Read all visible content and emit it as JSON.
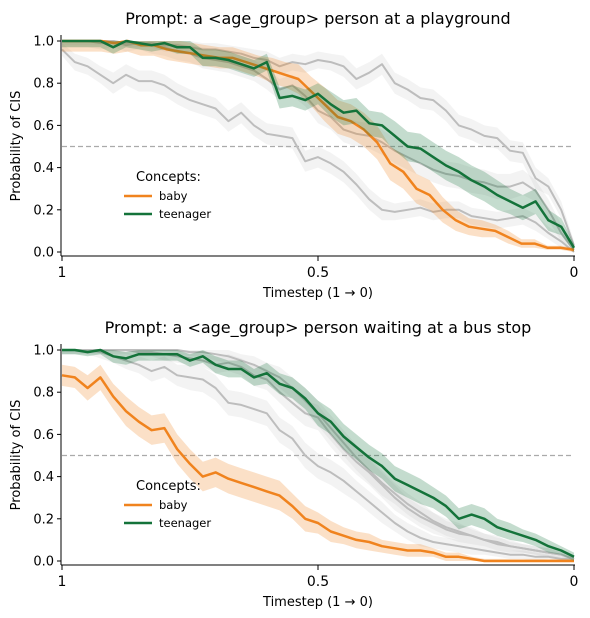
{
  "chart_data": [
    {
      "type": "line",
      "title": "Prompt: a <age_group> person at a playground",
      "xlabel": "Timestep (1 → 0)",
      "ylabel": "Probability of CIS",
      "xlim": [
        1,
        0
      ],
      "ylim": [
        0,
        1
      ],
      "x_ticks": [
        "1",
        "0.5",
        "0"
      ],
      "y_ticks": [
        "0.0",
        "0.2",
        "0.4",
        "0.6",
        "0.8",
        "1.0"
      ],
      "reference_line": 0.5,
      "legend": {
        "title": "Concepts:",
        "placement": "center-left"
      },
      "series": [
        {
          "name": "baby",
          "color": "#f0831e",
          "y": [
            1.0,
            1.0,
            1.0,
            1.0,
            0.99,
            1.0,
            0.98,
            0.98,
            0.96,
            0.95,
            0.94,
            0.93,
            0.92,
            0.92,
            0.9,
            0.88,
            0.86,
            0.84,
            0.82,
            0.76,
            0.7,
            0.64,
            0.62,
            0.58,
            0.52,
            0.42,
            0.38,
            0.3,
            0.27,
            0.2,
            0.15,
            0.12,
            0.11,
            0.1,
            0.07,
            0.04,
            0.04,
            0.02,
            0.02,
            0.01
          ],
          "band": [
            0.05,
            0.05,
            0.05,
            0.05,
            0.05,
            0.05,
            0.05,
            0.05,
            0.05,
            0.05,
            0.05,
            0.05,
            0.05,
            0.05,
            0.05,
            0.05,
            0.06,
            0.06,
            0.07,
            0.07,
            0.08,
            0.08,
            0.08,
            0.08,
            0.08,
            0.08,
            0.08,
            0.07,
            0.07,
            0.06,
            0.05,
            0.04,
            0.04,
            0.03,
            0.03,
            0.02,
            0.02,
            0.01,
            0.01,
            0.01
          ]
        },
        {
          "name": "teenager",
          "color": "#14733a",
          "y": [
            1.0,
            1.0,
            1.0,
            1.0,
            0.97,
            1.0,
            0.99,
            0.98,
            0.99,
            0.97,
            0.97,
            0.92,
            0.92,
            0.91,
            0.89,
            0.87,
            0.9,
            0.73,
            0.74,
            0.72,
            0.75,
            0.7,
            0.66,
            0.67,
            0.61,
            0.6,
            0.55,
            0.5,
            0.49,
            0.45,
            0.41,
            0.38,
            0.34,
            0.31,
            0.27,
            0.24,
            0.21,
            0.24,
            0.15,
            0.12,
            0.02
          ],
          "band": [
            0.03,
            0.03,
            0.03,
            0.03,
            0.03,
            0.03,
            0.03,
            0.03,
            0.03,
            0.03,
            0.03,
            0.04,
            0.04,
            0.04,
            0.04,
            0.04,
            0.04,
            0.05,
            0.05,
            0.05,
            0.05,
            0.06,
            0.06,
            0.06,
            0.06,
            0.06,
            0.07,
            0.07,
            0.07,
            0.07,
            0.07,
            0.07,
            0.07,
            0.07,
            0.07,
            0.06,
            0.06,
            0.06,
            0.05,
            0.04,
            0.02
          ]
        },
        {
          "name": "",
          "color": "#bdbdbd",
          "y": [
            0.96,
            0.9,
            0.88,
            0.84,
            0.8,
            0.84,
            0.81,
            0.81,
            0.79,
            0.75,
            0.72,
            0.7,
            0.68,
            0.62,
            0.66,
            0.6,
            0.56,
            0.55,
            0.54,
            0.43,
            0.45,
            0.42,
            0.38,
            0.32,
            0.25,
            0.2,
            0.19,
            0.2,
            0.21,
            0.19,
            0.2,
            0.2,
            0.17,
            0.16,
            0.15,
            0.16,
            0.17,
            0.14,
            0.09,
            0.05,
            0.0
          ],
          "band": [
            0.03,
            0.04,
            0.04,
            0.04,
            0.05,
            0.05,
            0.05,
            0.05,
            0.05,
            0.05,
            0.05,
            0.05,
            0.05,
            0.05,
            0.05,
            0.05,
            0.05,
            0.05,
            0.05,
            0.05,
            0.05,
            0.05,
            0.05,
            0.05,
            0.05,
            0.05,
            0.04,
            0.04,
            0.04,
            0.04,
            0.04,
            0.04,
            0.04,
            0.04,
            0.04,
            0.04,
            0.04,
            0.04,
            0.03,
            0.03,
            0.02
          ]
        },
        {
          "name": "",
          "color": "#bdbdbd",
          "y": [
            1.0,
            1.0,
            1.0,
            0.99,
            1.0,
            0.98,
            0.99,
            0.98,
            0.97,
            0.95,
            0.94,
            0.92,
            0.91,
            0.9,
            0.88,
            0.86,
            0.82,
            0.77,
            0.79,
            0.74,
            0.67,
            0.64,
            0.58,
            0.56,
            0.55,
            0.52,
            0.48,
            0.45,
            0.42,
            0.39,
            0.37,
            0.36,
            0.34,
            0.33,
            0.31,
            0.31,
            0.33,
            0.29,
            0.2,
            0.09,
            0.01
          ],
          "band": [
            0.03,
            0.03,
            0.03,
            0.03,
            0.03,
            0.03,
            0.03,
            0.04,
            0.04,
            0.04,
            0.04,
            0.05,
            0.05,
            0.05,
            0.05,
            0.05,
            0.05,
            0.05,
            0.05,
            0.05,
            0.06,
            0.06,
            0.06,
            0.06,
            0.06,
            0.06,
            0.06,
            0.06,
            0.06,
            0.06,
            0.06,
            0.06,
            0.06,
            0.06,
            0.06,
            0.06,
            0.06,
            0.05,
            0.05,
            0.04,
            0.02
          ]
        },
        {
          "name": "",
          "color": "#bdbdbd",
          "y": [
            1.0,
            1.0,
            1.0,
            1.0,
            1.0,
            0.99,
            0.99,
            0.99,
            0.98,
            0.98,
            0.97,
            0.96,
            0.96,
            0.95,
            0.94,
            0.92,
            0.91,
            0.88,
            0.9,
            0.89,
            0.91,
            0.9,
            0.88,
            0.82,
            0.85,
            0.89,
            0.8,
            0.77,
            0.73,
            0.72,
            0.67,
            0.6,
            0.58,
            0.55,
            0.54,
            0.48,
            0.47,
            0.35,
            0.31,
            0.2,
            0.03
          ],
          "band": [
            0.02,
            0.02,
            0.02,
            0.02,
            0.02,
            0.02,
            0.02,
            0.02,
            0.03,
            0.03,
            0.03,
            0.03,
            0.03,
            0.03,
            0.03,
            0.04,
            0.04,
            0.04,
            0.04,
            0.04,
            0.04,
            0.04,
            0.05,
            0.05,
            0.05,
            0.05,
            0.05,
            0.05,
            0.05,
            0.05,
            0.05,
            0.05,
            0.05,
            0.05,
            0.05,
            0.05,
            0.05,
            0.05,
            0.04,
            0.04,
            0.02
          ]
        }
      ]
    },
    {
      "type": "line",
      "title": "Prompt: a <age_group> person waiting at a bus stop",
      "xlabel": "Timestep (1 → 0)",
      "ylabel": "Probability of CIS",
      "xlim": [
        1,
        0
      ],
      "ylim": [
        0,
        1
      ],
      "x_ticks": [
        "1",
        "0.5",
        "0"
      ],
      "y_ticks": [
        "0.0",
        "0.2",
        "0.4",
        "0.6",
        "0.8",
        "1.0"
      ],
      "reference_line": 0.5,
      "legend": {
        "title": "Concepts:",
        "placement": "center-left"
      },
      "series": [
        {
          "name": "baby",
          "color": "#f0831e",
          "y": [
            0.88,
            0.87,
            0.82,
            0.87,
            0.78,
            0.71,
            0.66,
            0.62,
            0.63,
            0.53,
            0.46,
            0.4,
            0.42,
            0.39,
            0.37,
            0.35,
            0.33,
            0.31,
            0.26,
            0.2,
            0.18,
            0.14,
            0.12,
            0.1,
            0.09,
            0.07,
            0.06,
            0.05,
            0.05,
            0.04,
            0.02,
            0.02,
            0.01,
            0.0,
            0.0,
            0.0,
            0.0,
            0.0,
            0.0,
            0.0,
            0.0
          ],
          "band": [
            0.05,
            0.05,
            0.06,
            0.06,
            0.06,
            0.07,
            0.07,
            0.07,
            0.07,
            0.07,
            0.07,
            0.07,
            0.07,
            0.07,
            0.07,
            0.07,
            0.07,
            0.07,
            0.06,
            0.06,
            0.05,
            0.05,
            0.04,
            0.04,
            0.04,
            0.03,
            0.03,
            0.03,
            0.03,
            0.02,
            0.02,
            0.02,
            0.01,
            0.01,
            0.01,
            0.01,
            0.01,
            0.01,
            0.01,
            0.01,
            0.01
          ]
        },
        {
          "name": "teenager",
          "color": "#14733a",
          "y": [
            1.0,
            1.0,
            0.99,
            1.0,
            0.97,
            0.96,
            0.98,
            0.98,
            0.98,
            0.98,
            0.95,
            0.97,
            0.93,
            0.91,
            0.91,
            0.87,
            0.89,
            0.84,
            0.82,
            0.77,
            0.7,
            0.66,
            0.59,
            0.54,
            0.49,
            0.45,
            0.39,
            0.36,
            0.33,
            0.3,
            0.26,
            0.2,
            0.22,
            0.2,
            0.16,
            0.14,
            0.12,
            0.1,
            0.07,
            0.05,
            0.02
          ],
          "band": [
            0.02,
            0.02,
            0.02,
            0.02,
            0.03,
            0.03,
            0.03,
            0.03,
            0.03,
            0.03,
            0.03,
            0.03,
            0.04,
            0.04,
            0.04,
            0.04,
            0.05,
            0.05,
            0.05,
            0.05,
            0.06,
            0.06,
            0.06,
            0.06,
            0.06,
            0.06,
            0.06,
            0.06,
            0.06,
            0.05,
            0.05,
            0.05,
            0.05,
            0.05,
            0.04,
            0.04,
            0.03,
            0.03,
            0.03,
            0.02,
            0.02
          ]
        },
        {
          "name": "",
          "color": "#bdbdbd",
          "y": [
            1.0,
            1.0,
            1.0,
            0.99,
            0.97,
            0.95,
            0.93,
            0.9,
            0.92,
            0.88,
            0.87,
            0.86,
            0.82,
            0.75,
            0.74,
            0.72,
            0.7,
            0.62,
            0.58,
            0.5,
            0.45,
            0.42,
            0.38,
            0.33,
            0.28,
            0.23,
            0.18,
            0.14,
            0.11,
            0.09,
            0.08,
            0.07,
            0.06,
            0.05,
            0.04,
            0.03,
            0.03,
            0.02,
            0.02,
            0.01,
            0.01
          ],
          "band": [
            0.02,
            0.02,
            0.02,
            0.03,
            0.03,
            0.04,
            0.04,
            0.05,
            0.05,
            0.05,
            0.06,
            0.06,
            0.06,
            0.06,
            0.06,
            0.06,
            0.06,
            0.06,
            0.06,
            0.06,
            0.06,
            0.06,
            0.06,
            0.05,
            0.05,
            0.05,
            0.04,
            0.04,
            0.04,
            0.03,
            0.03,
            0.03,
            0.03,
            0.02,
            0.02,
            0.02,
            0.02,
            0.02,
            0.01,
            0.01,
            0.01
          ]
        },
        {
          "name": "",
          "color": "#bdbdbd",
          "y": [
            1.0,
            1.0,
            1.0,
            1.0,
            1.0,
            1.0,
            0.99,
            0.99,
            0.98,
            0.97,
            0.96,
            0.95,
            0.93,
            0.94,
            0.92,
            0.88,
            0.86,
            0.8,
            0.75,
            0.7,
            0.68,
            0.6,
            0.53,
            0.47,
            0.42,
            0.36,
            0.3,
            0.25,
            0.21,
            0.18,
            0.15,
            0.13,
            0.12,
            0.1,
            0.08,
            0.07,
            0.06,
            0.05,
            0.04,
            0.03,
            0.01
          ],
          "band": [
            0.02,
            0.02,
            0.02,
            0.02,
            0.02,
            0.02,
            0.02,
            0.02,
            0.03,
            0.03,
            0.03,
            0.03,
            0.04,
            0.04,
            0.04,
            0.05,
            0.05,
            0.05,
            0.06,
            0.06,
            0.06,
            0.06,
            0.06,
            0.06,
            0.06,
            0.06,
            0.06,
            0.05,
            0.05,
            0.05,
            0.04,
            0.04,
            0.04,
            0.03,
            0.03,
            0.03,
            0.02,
            0.02,
            0.02,
            0.02,
            0.01
          ]
        },
        {
          "name": "",
          "color": "#bdbdbd",
          "y": [
            1.0,
            1.0,
            1.0,
            1.0,
            1.0,
            1.0,
            1.0,
            1.0,
            1.0,
            1.0,
            0.99,
            0.99,
            0.98,
            0.97,
            0.95,
            0.93,
            0.9,
            0.87,
            0.82,
            0.76,
            0.7,
            0.63,
            0.56,
            0.49,
            0.43,
            0.37,
            0.32,
            0.27,
            0.23,
            0.19,
            0.16,
            0.14,
            0.12,
            0.1,
            0.09,
            0.07,
            0.06,
            0.05,
            0.04,
            0.03,
            0.01
          ],
          "band": [
            0.01,
            0.01,
            0.01,
            0.01,
            0.01,
            0.01,
            0.01,
            0.01,
            0.02,
            0.02,
            0.02,
            0.02,
            0.03,
            0.03,
            0.03,
            0.04,
            0.04,
            0.05,
            0.05,
            0.06,
            0.06,
            0.06,
            0.06,
            0.06,
            0.06,
            0.06,
            0.05,
            0.05,
            0.05,
            0.04,
            0.04,
            0.04,
            0.03,
            0.03,
            0.03,
            0.02,
            0.02,
            0.02,
            0.02,
            0.01,
            0.01
          ]
        }
      ]
    }
  ]
}
